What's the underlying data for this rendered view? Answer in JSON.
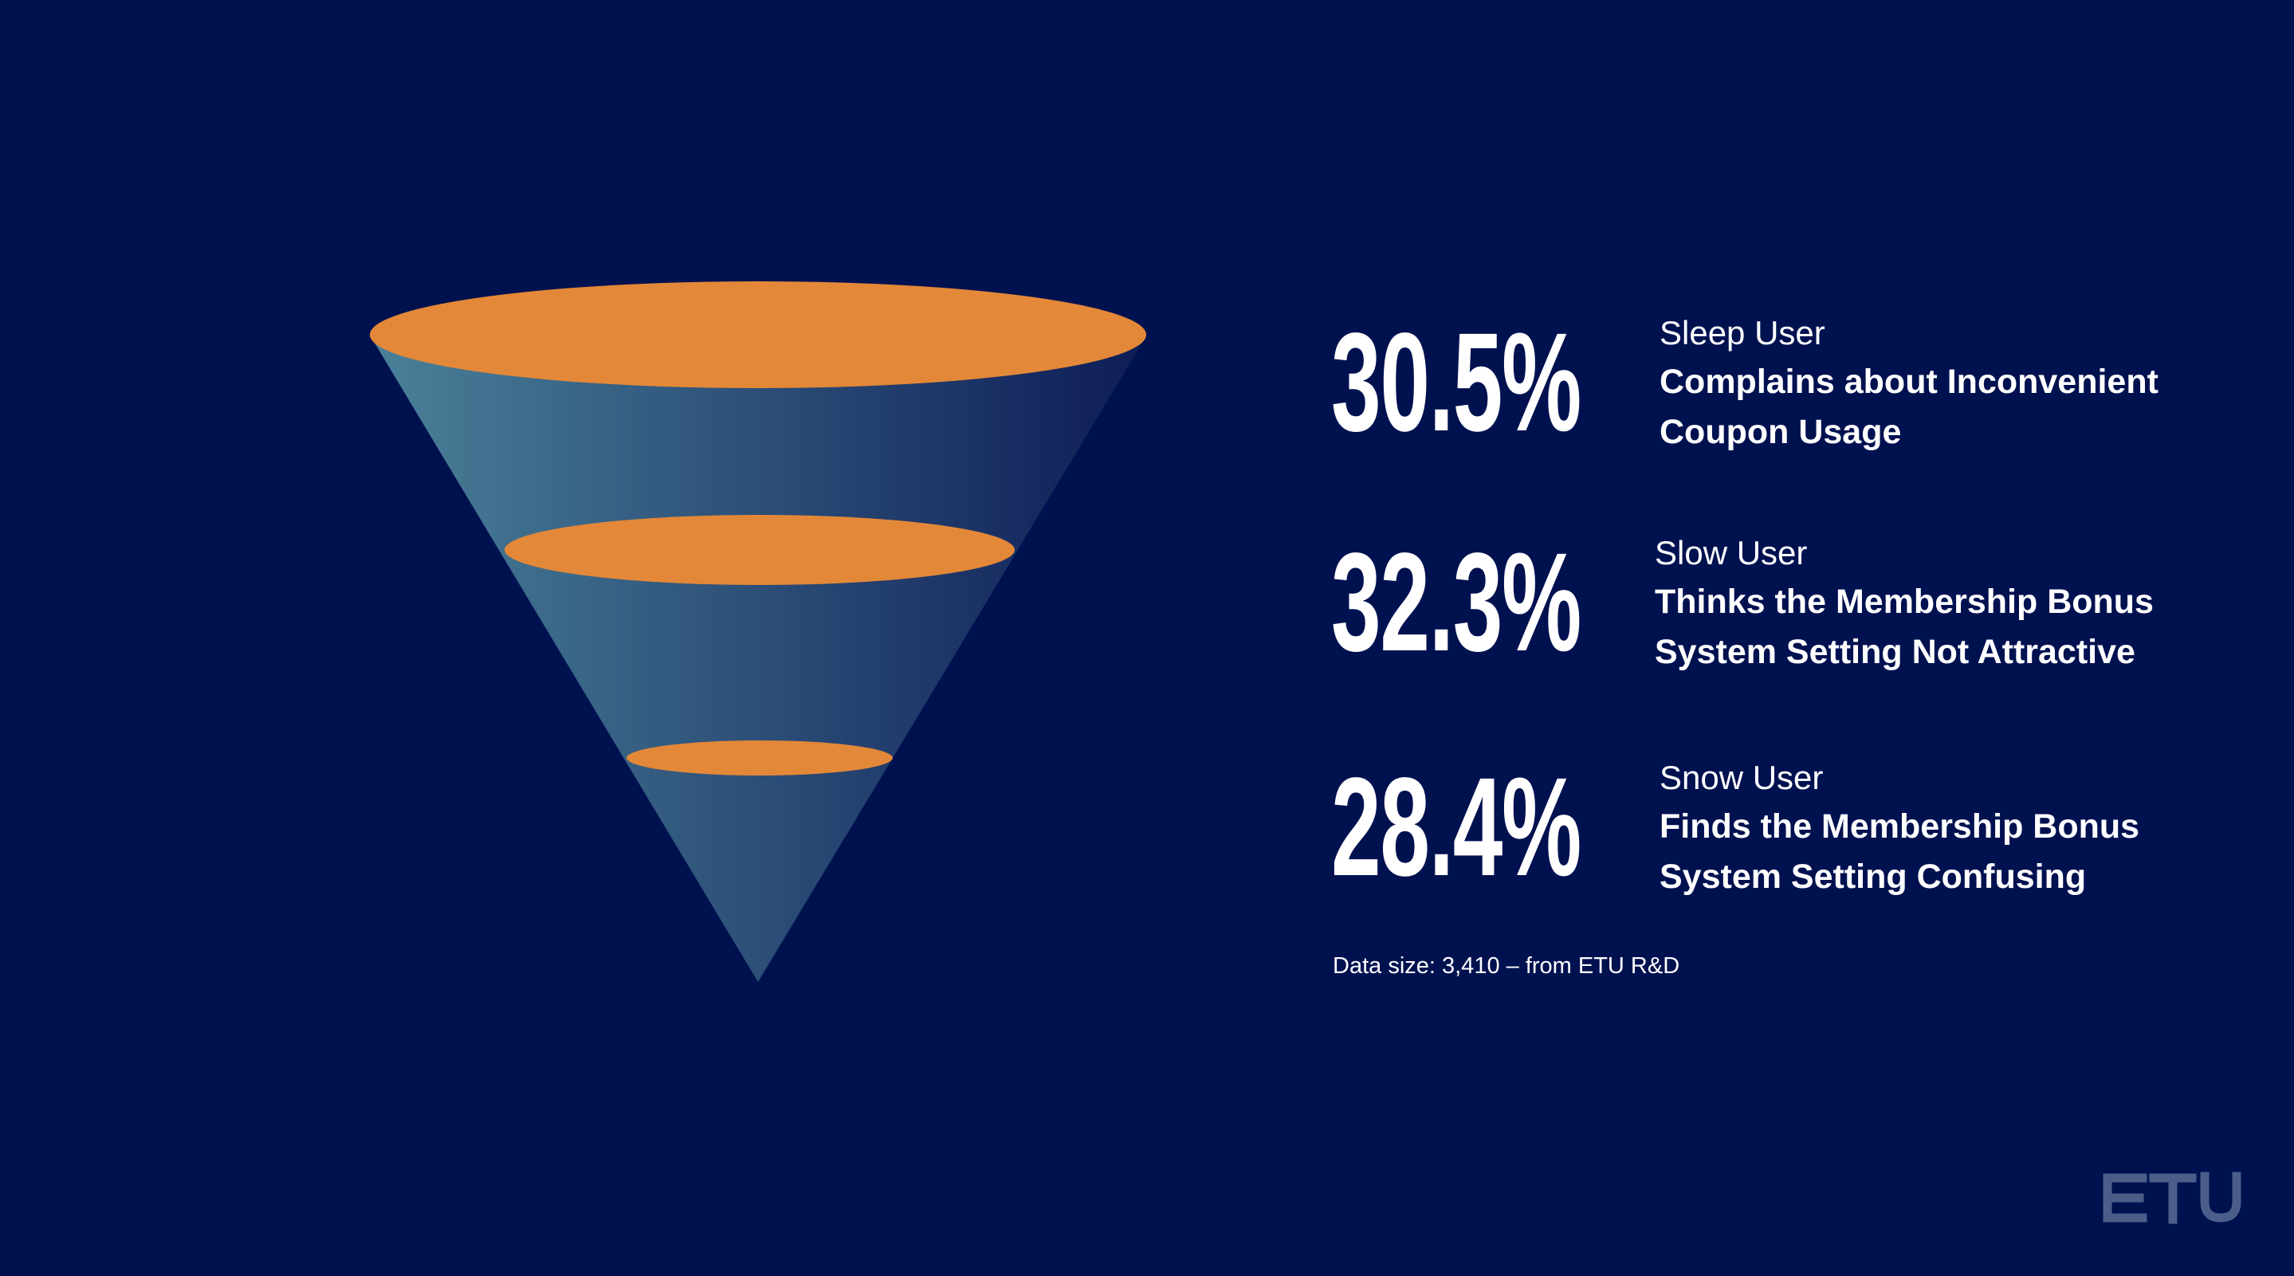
{
  "colors": {
    "background": "#001150",
    "ellipse": "#E38838",
    "cone_light": "#4A8199",
    "cone_dark": "#0E1C56",
    "logo": "#4B5D89"
  },
  "stats": [
    {
      "value": "30.5%",
      "user_type": "Sleep User",
      "line1": "Complains about Inconvenient",
      "line2": "Coupon Usage"
    },
    {
      "value": "32.3%",
      "user_type": "Slow User",
      "line1": "Thinks the Membership Bonus",
      "line2": "System Setting Not Attractive"
    },
    {
      "value": "28.4%",
      "user_type": "Snow User",
      "line1": "Finds the Membership Bonus",
      "line2": "System Setting Confusing"
    }
  ],
  "source": "Data size: 3,410 – from ETU R&D",
  "logo": {
    "text": "ETU"
  }
}
